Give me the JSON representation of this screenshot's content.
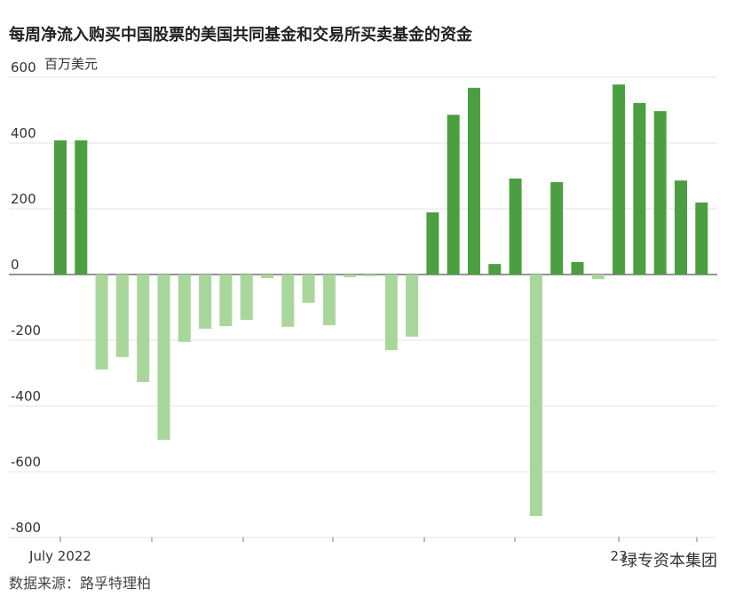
{
  "chart_data": {
    "type": "bar",
    "title": "每周净流入购买中国股票的美国共同基金和交易所买卖基金的资金",
    "y_unit": "百万美元",
    "categories": [
      "July 2022",
      null,
      null,
      null,
      null,
      null,
      null,
      null,
      null,
      null,
      null,
      null,
      null,
      null,
      null,
      null,
      null,
      null,
      null,
      null,
      null,
      null,
      null,
      null,
      null,
      null,
      null,
      "23",
      null,
      null,
      null,
      null
    ],
    "values": [
      408,
      408,
      -289,
      -251,
      -327,
      -503,
      -205,
      -165,
      -157,
      -138,
      -11,
      -159,
      -86,
      -154,
      -8,
      -5,
      -230,
      -189,
      189,
      486,
      568,
      32,
      292,
      -735,
      281,
      38,
      -14,
      578,
      522,
      497,
      286,
      219
    ],
    "positive_color": "#4c9f40",
    "negative_color": "#a9d69b",
    "ylim": [
      -800,
      600
    ],
    "yticks": [
      600,
      400,
      200,
      0,
      -200,
      -400,
      -600,
      -800
    ],
    "grid": true,
    "source": "数据来源：路孚特理柏",
    "watermark": "绿专资本集团"
  }
}
